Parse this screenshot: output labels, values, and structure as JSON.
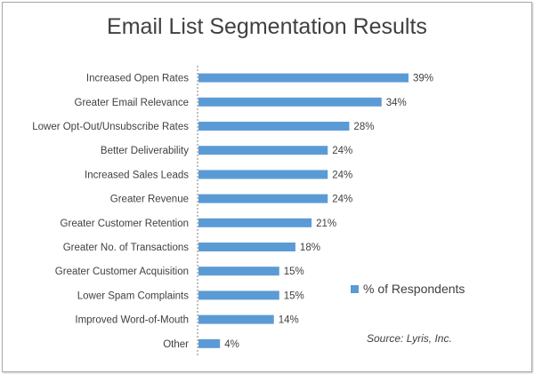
{
  "chart_data": {
    "type": "bar",
    "orientation": "horizontal",
    "title": "Email List Segmentation Results",
    "categories": [
      "Increased Open Rates",
      "Greater Email Relevance",
      "Lower Opt-Out/Unsubscribe Rates",
      "Better Deliverability",
      "Increased Sales Leads",
      "Greater Revenue",
      "Greater Customer Retention",
      "Greater No. of Transactions",
      "Greater Customer Acquisition",
      "Lower Spam Complaints",
      "Improved Word-of-Mouth",
      "Other"
    ],
    "series": [
      {
        "name": "% of Respondents",
        "values": [
          39,
          34,
          28,
          24,
          24,
          24,
          21,
          18,
          15,
          15,
          14,
          4
        ],
        "labels": [
          "39%",
          "34%",
          "28%",
          "24%",
          "24%",
          "24%",
          "21%",
          "18%",
          "15%",
          "15%",
          "14%",
          "4%"
        ]
      }
    ],
    "xlim": [
      0,
      45
    ],
    "grid": false,
    "legend": "right",
    "bar_color": "#5b9bd5"
  },
  "source_note": "Source: Lyris, Inc."
}
